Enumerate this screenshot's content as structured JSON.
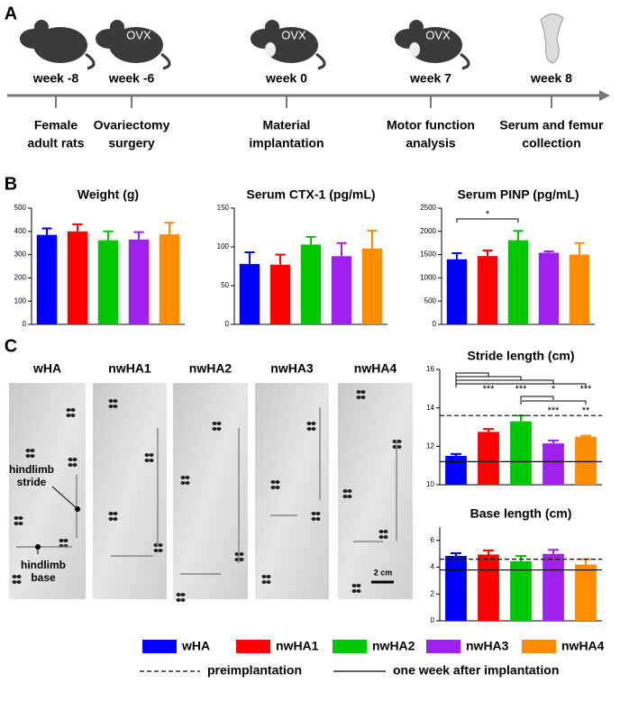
{
  "panel_labels": [
    "A",
    "B",
    "C"
  ],
  "timeline": {
    "weeks": [
      "week -8",
      "week -6",
      "week 0",
      "week 7",
      "week 8"
    ],
    "icon_labels": [
      "OVX",
      "OVX",
      "OVX"
    ],
    "events": [
      [
        "Female",
        "adult rats"
      ],
      [
        "Ovariectomy",
        "surgery"
      ],
      [
        "Material",
        "implantation"
      ],
      [
        "Motor function",
        "analysis"
      ],
      [
        "Serum and femur",
        "collection"
      ]
    ]
  },
  "footprints": {
    "groups": [
      "wHA",
      "nwHA1",
      "nwHA2",
      "nwHA3",
      "nwHA4"
    ],
    "annotations": [
      [
        "hindlimb",
        "stride"
      ],
      [
        "hindlimb",
        "base"
      ]
    ],
    "scale_bar": "2 cm"
  },
  "chart_data": [
    {
      "type": "bar",
      "title": "Weight (g)",
      "values": [
        385,
        400,
        362,
        365,
        387
      ],
      "errors": [
        28,
        30,
        38,
        32,
        50
      ],
      "colors": [
        "#0000ff",
        "#ff0000",
        "#00c800",
        "#a020f0",
        "#ff8c00"
      ],
      "ylim": [
        0,
        500
      ],
      "yticks": [
        0,
        100,
        200,
        300,
        400,
        500
      ]
    },
    {
      "type": "bar",
      "title": "Serum CTX-1 (pg/mL)",
      "values": [
        78,
        77,
        103,
        88,
        98
      ],
      "errors": [
        15,
        13,
        10,
        17,
        23
      ],
      "colors": [
        "#0000ff",
        "#ff0000",
        "#00c800",
        "#a020f0",
        "#ff8c00"
      ],
      "ylim": [
        0,
        150
      ],
      "yticks": [
        0,
        50,
        100,
        150
      ]
    },
    {
      "type": "bar",
      "title": "Serum PINP (pg/mL)",
      "values": [
        1400,
        1470,
        1810,
        1540,
        1500
      ],
      "errors": [
        130,
        120,
        200,
        30,
        250
      ],
      "colors": [
        "#0000ff",
        "#ff0000",
        "#00c800",
        "#a020f0",
        "#ff8c00"
      ],
      "ylim": [
        0,
        2500
      ],
      "yticks": [
        0,
        500,
        1000,
        1500,
        2000,
        2500
      ],
      "significance": [
        "*"
      ]
    },
    {
      "type": "bar",
      "title": "Stride length (cm)",
      "values": [
        11.5,
        12.75,
        13.3,
        12.15,
        12.5
      ],
      "errors": [
        0.1,
        0.15,
        0.3,
        0.15,
        0.05
      ],
      "colors": [
        "#0000ff",
        "#ff0000",
        "#00c800",
        "#a020f0",
        "#ff8c00"
      ],
      "ylim": [
        10,
        16
      ],
      "yticks": [
        10,
        12,
        14,
        16
      ],
      "reference_lines": [
        {
          "value": 13.6,
          "style": "dashed"
        },
        {
          "value": 11.2,
          "style": "solid"
        }
      ],
      "significance": [
        "***",
        "***",
        "*",
        "***",
        "***",
        "**"
      ]
    },
    {
      "type": "bar",
      "title": "Base length (cm)",
      "values": [
        4.85,
        4.95,
        4.45,
        5.0,
        4.2
      ],
      "errors": [
        0.2,
        0.3,
        0.4,
        0.3,
        0.4
      ],
      "colors": [
        "#0000ff",
        "#ff0000",
        "#00c800",
        "#a020f0",
        "#ff8c00"
      ],
      "ylim": [
        0,
        7
      ],
      "yticks": [
        0,
        2,
        4,
        6
      ],
      "reference_lines": [
        {
          "value": 4.6,
          "style": "dashed"
        },
        {
          "value": 3.8,
          "style": "solid"
        }
      ]
    }
  ],
  "legend": {
    "series": [
      {
        "name": "wHA",
        "color": "#0000ff"
      },
      {
        "name": "nwHA1",
        "color": "#ff0000"
      },
      {
        "name": "nwHA2",
        "color": "#00c800"
      },
      {
        "name": "nwHA3",
        "color": "#a020f0"
      },
      {
        "name": "nwHA4",
        "color": "#ff8c00"
      }
    ],
    "lines": [
      {
        "name": "preimplantation",
        "style": "dashed"
      },
      {
        "name": "one week after implantation",
        "style": "solid"
      }
    ]
  }
}
